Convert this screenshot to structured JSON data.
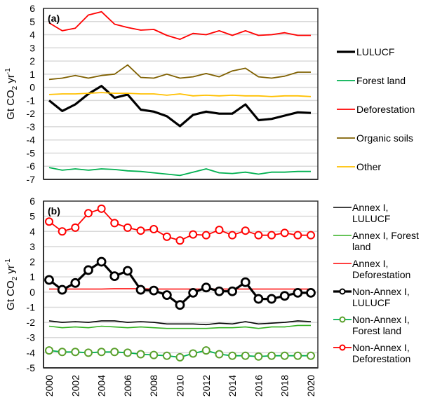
{
  "chart_data": [
    {
      "type": "line",
      "panel_label": "(a)",
      "title": "",
      "xlabel": "",
      "ylabel": "Gt CO2 yr-1",
      "ylabel_parts": {
        "main": "Gt CO",
        "sub": "2",
        "after": " yr",
        "sup": "-1"
      },
      "ylim": [
        -7,
        6
      ],
      "yticks": [
        6,
        5,
        4,
        3,
        2,
        1,
        0,
        -1,
        -2,
        -3,
        -4,
        -5,
        -6,
        -7
      ],
      "x": [
        2000,
        2001,
        2002,
        2003,
        2004,
        2005,
        2006,
        2007,
        2008,
        2009,
        2010,
        2011,
        2012,
        2013,
        2014,
        2015,
        2016,
        2017,
        2018,
        2019,
        2020
      ],
      "xtick_labels_shown": false,
      "grid": true,
      "legend_position": "right",
      "series": [
        {
          "name": "LULUCF",
          "color": "#000000",
          "width": "thick",
          "marker": "none",
          "values": [
            -1.0,
            -1.8,
            -1.3,
            -0.5,
            0.1,
            -0.8,
            -0.55,
            -1.7,
            -1.85,
            -2.2,
            -2.95,
            -2.1,
            -1.85,
            -2.0,
            -2.0,
            -1.3,
            -2.5,
            -2.4,
            -2.15,
            -1.9,
            -1.95
          ]
        },
        {
          "name": "Forest land",
          "color": "#00b050",
          "width": "normal",
          "marker": "none",
          "values": [
            -6.1,
            -6.3,
            -6.2,
            -6.3,
            -6.2,
            -6.25,
            -6.35,
            -6.4,
            -6.5,
            -6.6,
            -6.7,
            -6.45,
            -6.2,
            -6.5,
            -6.55,
            -6.45,
            -6.6,
            -6.45,
            -6.45,
            -6.4,
            -6.4
          ]
        },
        {
          "name": "Deforestation",
          "color": "#ff0000",
          "width": "normal",
          "marker": "none",
          "values": [
            4.9,
            4.3,
            4.5,
            5.5,
            5.75,
            4.8,
            4.55,
            4.35,
            4.4,
            3.95,
            3.65,
            4.1,
            4.0,
            4.3,
            3.95,
            4.3,
            3.95,
            4.0,
            4.15,
            3.95,
            3.95
          ]
        },
        {
          "name": "Organic soils",
          "color": "#7f6000",
          "width": "normal",
          "marker": "none",
          "values": [
            0.6,
            0.7,
            0.9,
            0.7,
            0.9,
            1.0,
            1.7,
            0.75,
            0.7,
            1.0,
            0.7,
            0.8,
            1.05,
            0.8,
            1.25,
            1.45,
            0.8,
            0.7,
            0.85,
            1.15,
            1.15
          ]
        },
        {
          "name": "Other",
          "color": "#ffc000",
          "width": "normal",
          "marker": "none",
          "values": [
            -0.55,
            -0.5,
            -0.5,
            -0.45,
            -0.4,
            -0.45,
            -0.45,
            -0.5,
            -0.5,
            -0.6,
            -0.5,
            -0.65,
            -0.6,
            -0.65,
            -0.6,
            -0.65,
            -0.65,
            -0.7,
            -0.65,
            -0.65,
            -0.7
          ]
        }
      ]
    },
    {
      "type": "line",
      "panel_label": "(b)",
      "title": "",
      "xlabel": "",
      "ylabel": "Gt CO2 yr-1",
      "ylabel_parts": {
        "main": "Gt CO",
        "sub": "2",
        "after": " yr",
        "sup": "-1"
      },
      "ylim": [
        -5,
        6
      ],
      "yticks": [
        6,
        5,
        4,
        3,
        2,
        1,
        0,
        -1,
        -2,
        -3,
        -4,
        -5
      ],
      "x": [
        2000,
        2001,
        2002,
        2003,
        2004,
        2005,
        2006,
        2007,
        2008,
        2009,
        2010,
        2011,
        2012,
        2013,
        2014,
        2015,
        2016,
        2017,
        2018,
        2019,
        2020
      ],
      "xtick_labels": [
        "2000",
        "2002",
        "2004",
        "2006",
        "2008",
        "2010",
        "2012",
        "2014",
        "2016",
        "2018",
        "2020"
      ],
      "grid": true,
      "legend_position": "right",
      "series": [
        {
          "name": "Annex I, LULUCF",
          "legend_lines": [
            "Annex I,",
            "LULUCF"
          ],
          "color": "#000000",
          "width": "thin",
          "marker": "none",
          "values": [
            -1.9,
            -2.0,
            -1.95,
            -2.0,
            -1.9,
            -1.9,
            -2.0,
            -1.95,
            -2.0,
            -2.1,
            -2.1,
            -2.1,
            -2.15,
            -2.05,
            -2.1,
            -1.95,
            -2.1,
            -2.05,
            -2.0,
            -1.9,
            -1.95
          ]
        },
        {
          "name": "Annex I, Forest land",
          "legend_lines": [
            "Annex I, Forest",
            "land"
          ],
          "color": "#33b020",
          "width": "thin",
          "marker": "none",
          "values": [
            -2.25,
            -2.35,
            -2.3,
            -2.35,
            -2.25,
            -2.3,
            -2.35,
            -2.3,
            -2.35,
            -2.4,
            -2.4,
            -2.4,
            -2.4,
            -2.35,
            -2.35,
            -2.3,
            -2.4,
            -2.3,
            -2.3,
            -2.2,
            -2.2
          ]
        },
        {
          "name": "Annex I, Deforestation",
          "legend_lines": [
            "Annex I,",
            "Deforestation"
          ],
          "color": "#ff0000",
          "width": "thin",
          "marker": "none",
          "values": [
            0.2,
            0.2,
            0.2,
            0.2,
            0.2,
            0.22,
            0.22,
            0.22,
            0.2,
            0.2,
            0.2,
            0.2,
            0.2,
            0.2,
            0.2,
            0.2,
            0.2,
            0.2,
            0.2,
            0.2,
            0.2
          ]
        },
        {
          "name": "Non-Annex I, LULUCF",
          "legend_lines": [
            "Non-Annex I,",
            "LULUCF"
          ],
          "color": "#000000",
          "width": "thick",
          "marker": "open-circle",
          "values": [
            0.8,
            0.15,
            0.6,
            1.45,
            2.0,
            1.05,
            1.4,
            0.15,
            0.1,
            -0.2,
            -0.85,
            -0.05,
            0.3,
            0.05,
            0.05,
            0.65,
            -0.45,
            -0.45,
            -0.25,
            -0.05,
            -0.05
          ]
        },
        {
          "name": "Non-Annex I, Forest land",
          "legend_lines": [
            "Non-Annex I,",
            "Forest land"
          ],
          "color": "#00b050",
          "marker_color": "#5aa02c",
          "width": "normal",
          "marker": "open-circle",
          "values": [
            -3.85,
            -3.95,
            -3.95,
            -4.0,
            -3.95,
            -3.95,
            -4.0,
            -4.1,
            -4.15,
            -4.2,
            -4.3,
            -4.05,
            -3.85,
            -4.1,
            -4.2,
            -4.2,
            -4.25,
            -4.2,
            -4.2,
            -4.2,
            -4.2
          ]
        },
        {
          "name": "Non-Annex I, Deforestation",
          "legend_lines": [
            "Non-Annex I,",
            "Deforestation"
          ],
          "color": "#ff0000",
          "width": "normal",
          "marker": "open-circle",
          "values": [
            4.65,
            4.0,
            4.25,
            5.2,
            5.5,
            4.55,
            4.25,
            4.05,
            4.15,
            3.65,
            3.4,
            3.8,
            3.75,
            4.1,
            3.75,
            4.05,
            3.75,
            3.75,
            3.9,
            3.75,
            3.75
          ]
        }
      ]
    }
  ]
}
